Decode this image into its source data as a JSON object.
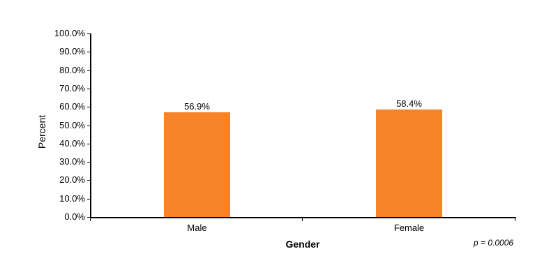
{
  "chart_data": {
    "type": "bar",
    "title": "",
    "xlabel": "Gender",
    "ylabel": "Percent",
    "categories": [
      "Male",
      "Female"
    ],
    "values": [
      56.9,
      58.4
    ],
    "value_labels": [
      "56.9%",
      "58.4%"
    ],
    "ylim": [
      0,
      100
    ],
    "yticks": [
      "0.0%",
      "10.0%",
      "20.0%",
      "30.0%",
      "40.0%",
      "50.0%",
      "60.0%",
      "70.0%",
      "80.0%",
      "90.0%",
      "100.0%"
    ],
    "annotation": "p = 0.0006",
    "grid": false,
    "legend": null,
    "bar_color": "#f7842b"
  }
}
